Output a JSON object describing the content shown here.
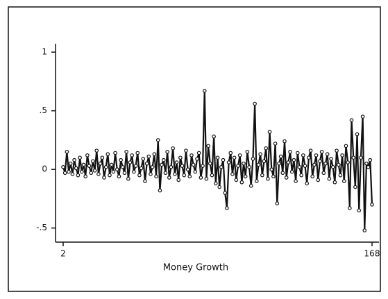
{
  "chart_data": {
    "type": "line",
    "xlabel": "Money Growth",
    "x": [
      2,
      3,
      4,
      5,
      6,
      7,
      8,
      9,
      10,
      11,
      12,
      13,
      14,
      15,
      16,
      17,
      18,
      19,
      20,
      21,
      22,
      23,
      24,
      25,
      26,
      27,
      28,
      29,
      30,
      31,
      32,
      33,
      34,
      35,
      36,
      37,
      38,
      39,
      40,
      41,
      42,
      43,
      44,
      45,
      46,
      47,
      48,
      49,
      50,
      51,
      52,
      53,
      54,
      55,
      56,
      57,
      58,
      59,
      60,
      61,
      62,
      63,
      64,
      65,
      66,
      67,
      68,
      69,
      70,
      71,
      72,
      73,
      74,
      75,
      76,
      77,
      78,
      79,
      80,
      81,
      82,
      83,
      84,
      85,
      86,
      87,
      88,
      89,
      90,
      91,
      92,
      93,
      94,
      95,
      96,
      97,
      98,
      99,
      100,
      101,
      102,
      103,
      104,
      105,
      106,
      107,
      108,
      109,
      110,
      111,
      112,
      113,
      114,
      115,
      116,
      117,
      118,
      119,
      120,
      121,
      122,
      123,
      124,
      125,
      126,
      127,
      128,
      129,
      130,
      131,
      132,
      133,
      134,
      135,
      136,
      137,
      138,
      139,
      140,
      141,
      142,
      143,
      144,
      145,
      146,
      147,
      148,
      149,
      150,
      151,
      152,
      153,
      154,
      155,
      156,
      157,
      158,
      159,
      160,
      161,
      162,
      163,
      164,
      165,
      166,
      167,
      168
    ],
    "series": [
      {
        "color": "#111111",
        "values": [
          0.02,
          -0.03,
          0.15,
          -0.02,
          0.05,
          -0.04,
          0.08,
          0.01,
          -0.05,
          0.1,
          -0.02,
          0.04,
          -0.06,
          0.12,
          0.03,
          -0.03,
          0.07,
          -0.01,
          0.16,
          -0.04,
          0.05,
          0.1,
          -0.07,
          0.02,
          0.13,
          -0.05,
          0.04,
          -0.02,
          0.14,
          0.0,
          -0.06,
          0.08,
          0.02,
          -0.03,
          0.15,
          -0.08,
          0.06,
          0.12,
          -0.02,
          0.03,
          0.14,
          -0.05,
          0.01,
          0.09,
          -0.1,
          0.05,
          0.11,
          -0.04,
          0.02,
          0.13,
          -0.06,
          0.25,
          -0.18,
          0.04,
          0.08,
          -0.03,
          0.15,
          -0.07,
          0.02,
          0.18,
          -0.04,
          0.06,
          -0.09,
          0.1,
          0.03,
          -0.05,
          0.16,
          0.0,
          -0.06,
          0.12,
          0.04,
          -0.02,
          0.09,
          0.14,
          -0.07,
          0.03,
          0.67,
          -0.08,
          0.2,
          0.05,
          -0.05,
          0.28,
          -0.12,
          0.1,
          -0.15,
          0.02,
          0.08,
          -0.2,
          -0.33,
          0.06,
          0.14,
          -0.04,
          0.1,
          -0.09,
          0.03,
          0.12,
          -0.11,
          0.05,
          -0.06,
          0.15,
          0.02,
          -0.14,
          0.09,
          0.56,
          -0.1,
          0.04,
          0.13,
          -0.05,
          0.07,
          0.18,
          -0.08,
          0.32,
          0.0,
          -0.06,
          0.22,
          -0.29,
          0.05,
          0.11,
          -0.03,
          0.24,
          -0.07,
          0.06,
          0.15,
          -0.02,
          0.08,
          -0.1,
          0.14,
          0.02,
          -0.05,
          0.12,
          0.03,
          -0.12,
          0.1,
          0.16,
          -0.06,
          0.04,
          0.12,
          -0.09,
          0.07,
          0.15,
          -0.03,
          0.05,
          0.13,
          -0.08,
          0.09,
          0.02,
          -0.11,
          0.16,
          0.04,
          -0.05,
          0.12,
          -0.1,
          0.2,
          0.06,
          -0.33,
          0.42,
          0.1,
          -0.15,
          0.3,
          -0.35,
          0.1,
          0.45,
          -0.52,
          0.05,
          0.02,
          0.08,
          -0.3
        ]
      }
    ],
    "xlim": [
      2,
      168
    ],
    "xticks": [
      2,
      168
    ],
    "ylim": [
      -0.62,
      1.06
    ],
    "yticks": [
      {
        "value": 1,
        "label": "1"
      },
      {
        "value": 0.5,
        "label": ".5"
      },
      {
        "value": 0,
        "label": "0"
      },
      {
        "value": -0.5,
        "label": "-.5"
      }
    ]
  }
}
